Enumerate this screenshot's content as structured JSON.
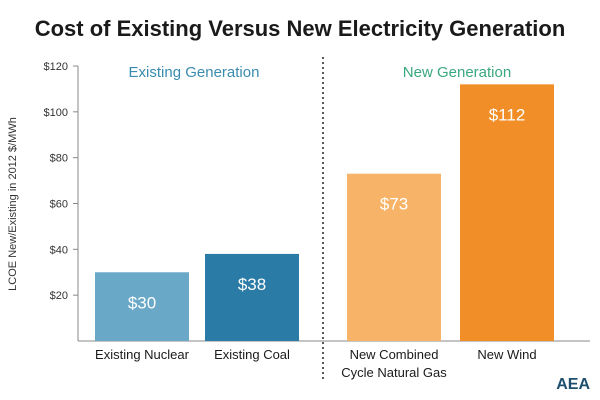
{
  "chart_data": {
    "type": "bar",
    "title": "Cost of Existing Versus New Electricity Generation",
    "ylabel": "LCOE New/Existing in 2012 $/MWh",
    "ylim": [
      0,
      120
    ],
    "yticks": [
      "$20",
      "$40",
      "$60",
      "$80",
      "$100",
      "$120"
    ],
    "ytick_values": [
      20,
      40,
      60,
      80,
      100,
      120
    ],
    "groups": [
      "Existing Generation",
      "New Generation"
    ],
    "group_colors": [
      "#3a8bb0",
      "#3aa87e"
    ],
    "categories": [
      "Existing Nuclear",
      "Existing Coal",
      "New Combined Cycle Natural Gas",
      "New Wind"
    ],
    "category_lines": [
      [
        "Existing Nuclear"
      ],
      [
        "Existing Coal"
      ],
      [
        "New Combined",
        "Cycle Natural Gas"
      ],
      [
        "New Wind"
      ]
    ],
    "values": [
      30,
      38,
      73,
      112
    ],
    "value_labels": [
      "$30",
      "$38",
      "$73",
      "$112"
    ],
    "bar_colors": [
      "#6aa8c7",
      "#2a7ba6",
      "#f7b468",
      "#f28e27"
    ],
    "grid": false
  },
  "logo_text": "AEA"
}
